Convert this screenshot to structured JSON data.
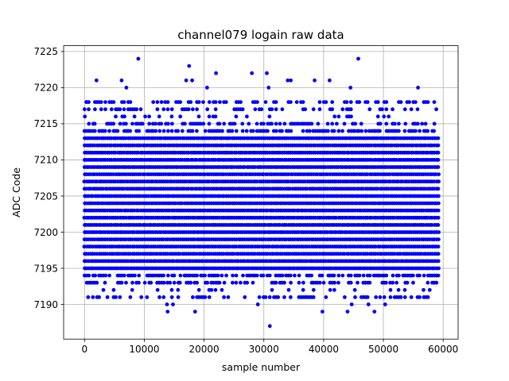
{
  "chart_data": {
    "type": "scatter",
    "title": "channel079 logain raw data",
    "xlabel": "sample number",
    "ylabel": "ADC Code",
    "xlim": [
      -3500,
      62500
    ],
    "ylim": [
      7185.2,
      7225.8
    ],
    "xticks": [
      0,
      10000,
      20000,
      30000,
      40000,
      50000,
      60000
    ],
    "yticks": [
      7190,
      7195,
      7200,
      7205,
      7210,
      7215,
      7220,
      7225
    ],
    "grid": true,
    "marker_color": "#0000ff",
    "sample_range": [
      0,
      59200
    ],
    "dense_band": [
      7192,
      7216
    ],
    "outliers": [
      {
        "x": 9000,
        "y": 7224
      },
      {
        "x": 17500,
        "y": 7223
      },
      {
        "x": 22000,
        "y": 7222
      },
      {
        "x": 28000,
        "y": 7222
      },
      {
        "x": 30500,
        "y": 7222
      },
      {
        "x": 45800,
        "y": 7224
      },
      {
        "x": 2000,
        "y": 7221
      },
      {
        "x": 6200,
        "y": 7221
      },
      {
        "x": 17000,
        "y": 7221
      },
      {
        "x": 18000,
        "y": 7221
      },
      {
        "x": 34000,
        "y": 7221
      },
      {
        "x": 34500,
        "y": 7221
      },
      {
        "x": 38500,
        "y": 7221
      },
      {
        "x": 41000,
        "y": 7221
      },
      {
        "x": 7000,
        "y": 7220
      },
      {
        "x": 20500,
        "y": 7220
      },
      {
        "x": 30800,
        "y": 7220
      },
      {
        "x": 44500,
        "y": 7220
      },
      {
        "x": 55800,
        "y": 7220
      },
      {
        "x": 300,
        "y": 7218
      },
      {
        "x": 13500,
        "y": 7218
      },
      {
        "x": 600,
        "y": 7191
      },
      {
        "x": 9500,
        "y": 7191
      },
      {
        "x": 13800,
        "y": 7190
      },
      {
        "x": 14800,
        "y": 7190
      },
      {
        "x": 29000,
        "y": 7190
      },
      {
        "x": 44700,
        "y": 7190
      },
      {
        "x": 47500,
        "y": 7190
      },
      {
        "x": 50300,
        "y": 7190
      },
      {
        "x": 13900,
        "y": 7189
      },
      {
        "x": 18500,
        "y": 7189
      },
      {
        "x": 39800,
        "y": 7189
      },
      {
        "x": 44000,
        "y": 7189
      },
      {
        "x": 48500,
        "y": 7189
      },
      {
        "x": 31000,
        "y": 7187
      }
    ]
  }
}
